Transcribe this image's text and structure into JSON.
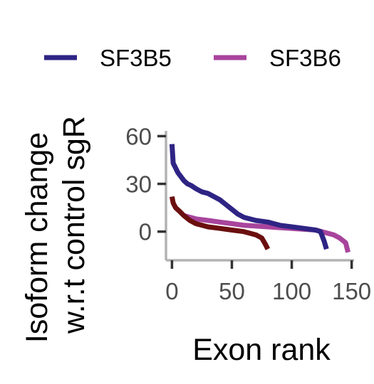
{
  "chart_data": {
    "type": "line",
    "xlabel": "Exon rank",
    "ylabel_lines": [
      "Isoform change",
      "w.r.t control sgR"
    ],
    "xlim": [
      -5,
      152
    ],
    "ylim": [
      -18,
      66
    ],
    "x_ticks": [
      0,
      50,
      100,
      150
    ],
    "y_ticks": [
      0,
      30,
      60
    ],
    "grid": false,
    "legend_position": "top",
    "series": [
      {
        "name": "SF3B5",
        "color": "#2e2484",
        "in_legend": true,
        "points": [
          [
            0,
            55
          ],
          [
            1,
            43
          ],
          [
            3,
            40
          ],
          [
            5,
            37
          ],
          [
            8,
            34
          ],
          [
            10,
            32
          ],
          [
            13,
            30
          ],
          [
            16,
            29
          ],
          [
            20,
            27
          ],
          [
            25,
            25
          ],
          [
            30,
            24
          ],
          [
            35,
            22
          ],
          [
            40,
            20
          ],
          [
            45,
            17
          ],
          [
            50,
            14
          ],
          [
            55,
            11
          ],
          [
            60,
            9
          ],
          [
            70,
            7
          ],
          [
            80,
            6
          ],
          [
            90,
            4
          ],
          [
            100,
            3
          ],
          [
            110,
            2
          ],
          [
            120,
            1
          ],
          [
            124,
            0
          ],
          [
            127,
            -6
          ],
          [
            129,
            -11
          ]
        ]
      },
      {
        "name": "SF3B6",
        "color": "#a8449c",
        "in_legend": true,
        "points": [
          [
            10,
            10
          ],
          [
            20,
            8
          ],
          [
            30,
            7
          ],
          [
            40,
            6
          ],
          [
            50,
            5
          ],
          [
            60,
            4
          ],
          [
            70,
            3.5
          ],
          [
            80,
            3
          ],
          [
            90,
            2.5
          ],
          [
            100,
            2
          ],
          [
            110,
            1.5
          ],
          [
            120,
            1
          ],
          [
            130,
            -1
          ],
          [
            135,
            -2
          ],
          [
            140,
            -4
          ],
          [
            145,
            -7
          ],
          [
            147,
            -13
          ]
        ]
      },
      {
        "name": "",
        "color": "#6b0f0f",
        "in_legend": false,
        "points": [
          [
            0,
            22
          ],
          [
            1,
            18
          ],
          [
            3,
            15
          ],
          [
            6,
            13
          ],
          [
            10,
            10
          ],
          [
            15,
            7
          ],
          [
            20,
            5
          ],
          [
            30,
            3
          ],
          [
            40,
            2
          ],
          [
            50,
            1
          ],
          [
            60,
            0
          ],
          [
            70,
            -2
          ],
          [
            75,
            -4
          ],
          [
            78,
            -8
          ],
          [
            80,
            -11
          ]
        ]
      }
    ]
  }
}
